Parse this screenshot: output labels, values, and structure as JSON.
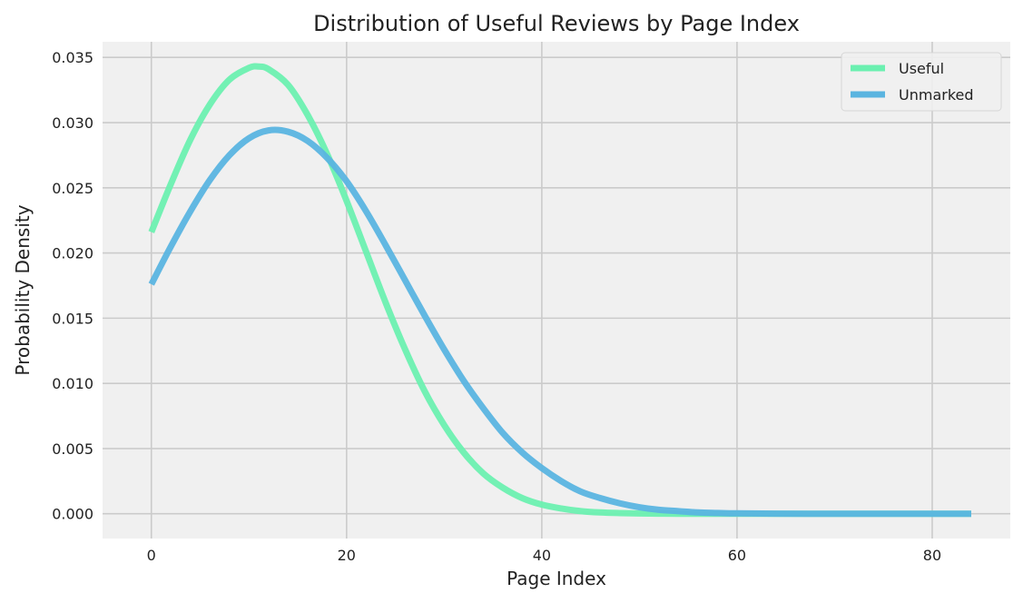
{
  "chart_data": {
    "type": "line",
    "title": "Distribution of Useful Reviews by Page Index",
    "xlabel": "Page Index",
    "ylabel": "Probability Density",
    "xlim": [
      -5,
      88
    ],
    "ylim": [
      -0.0019,
      0.0362
    ],
    "xticks": [
      0,
      20,
      40,
      60,
      80
    ],
    "xtick_labels": [
      "0",
      "20",
      "40",
      "60",
      "80"
    ],
    "yticks": [
      0,
      0.005,
      0.01,
      0.015,
      0.02,
      0.025,
      0.03,
      0.035
    ],
    "ytick_labels": [
      "0.000",
      "0.005",
      "0.010",
      "0.015",
      "0.020",
      "0.025",
      "0.030",
      "0.035"
    ],
    "grid": true,
    "legend_position": "top-right",
    "background": "#f0f0f0",
    "grid_color": "#cbcbcb",
    "series": [
      {
        "name": "Useful",
        "color": "#6bf0b0",
        "x": [
          0,
          2,
          4,
          6,
          8,
          10,
          11,
          12,
          14,
          16,
          18,
          20,
          22,
          24,
          26,
          28,
          30,
          32,
          34,
          36,
          38,
          40,
          42,
          44,
          46,
          48,
          50,
          52,
          54,
          56,
          58,
          60,
          64,
          68,
          72,
          76,
          80,
          84
        ],
        "y": [
          0.0216,
          0.0253,
          0.0287,
          0.0314,
          0.0333,
          0.0342,
          0.0343,
          0.0341,
          0.0329,
          0.0306,
          0.0276,
          0.024,
          0.0201,
          0.0162,
          0.0126,
          0.0094,
          0.0068,
          0.0047,
          0.0031,
          0.002,
          0.0012,
          0.0007,
          0.0004,
          0.0002,
          0.0001,
          5e-05,
          2e-05,
          1e-05,
          0.0,
          0.0,
          0.0,
          0.0,
          0.0,
          0.0,
          0.0,
          0.0,
          0.0,
          0.0
        ]
      },
      {
        "name": "Unmarked",
        "color": "#5ab4e0",
        "x": [
          0,
          2,
          4,
          6,
          8,
          10,
          12,
          14,
          16,
          18,
          20,
          22,
          24,
          26,
          28,
          30,
          32,
          34,
          36,
          38,
          40,
          42,
          44,
          46,
          48,
          50,
          52,
          54,
          56,
          58,
          60,
          64,
          68,
          72,
          76,
          80,
          84
        ],
        "y": [
          0.0176,
          0.0205,
          0.0232,
          0.0256,
          0.0275,
          0.0288,
          0.0294,
          0.0293,
          0.0286,
          0.0273,
          0.0255,
          0.0232,
          0.0206,
          0.0179,
          0.0152,
          0.0126,
          0.0102,
          0.0081,
          0.0062,
          0.0047,
          0.0035,
          0.0025,
          0.0017,
          0.0012,
          0.0008,
          0.0005,
          0.0003,
          0.0002,
          0.0001,
          6e-05,
          3e-05,
          1e-05,
          0.0,
          0.0,
          0.0,
          0.0,
          0.0
        ]
      }
    ]
  }
}
